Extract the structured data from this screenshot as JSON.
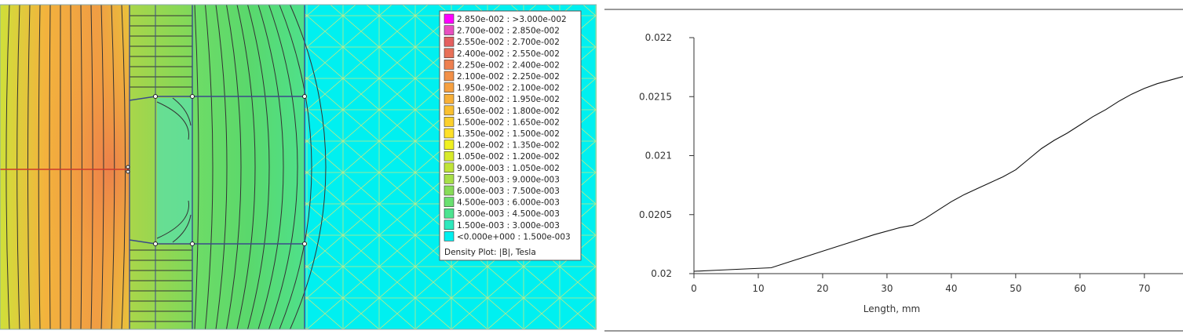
{
  "density_plot": {
    "caption": "Density Plot: |B|, Tesla",
    "legend": [
      {
        "label": "2.850e-002 : >3.000e-002",
        "color": "#ff00ff"
      },
      {
        "label": "2.700e-002 : 2.850e-002",
        "color": "#e84fc0"
      },
      {
        "label": "2.550e-002 : 2.700e-002",
        "color": "#e46060"
      },
      {
        "label": "2.400e-002 : 2.550e-002",
        "color": "#e87058"
      },
      {
        "label": "2.250e-002 : 2.400e-002",
        "color": "#ee8050"
      },
      {
        "label": "2.100e-002 : 2.250e-002",
        "color": "#f29048"
      },
      {
        "label": "1.950e-002 : 2.100e-002",
        "color": "#f6a040"
      },
      {
        "label": "1.800e-002 : 1.950e-002",
        "color": "#f8b038"
      },
      {
        "label": "1.650e-002 : 1.800e-002",
        "color": "#fac030"
      },
      {
        "label": "1.500e-002 : 1.650e-002",
        "color": "#fcd02c"
      },
      {
        "label": "1.350e-002 : 1.500e-002",
        "color": "#fee028"
      },
      {
        "label": "1.200e-002 : 1.350e-002",
        "color": "#f0f020"
      },
      {
        "label": "1.050e-002 : 1.200e-002",
        "color": "#d8ea2a"
      },
      {
        "label": "9.000e-003 : 1.050e-002",
        "color": "#c0e438"
      },
      {
        "label": "7.500e-003 : 9.000e-003",
        "color": "#a8e048"
      },
      {
        "label": "6.000e-003 : 7.500e-003",
        "color": "#88dc58"
      },
      {
        "label": "4.500e-003 : 6.000e-003",
        "color": "#6ae070"
      },
      {
        "label": "3.000e-003 : 4.500e-003",
        "color": "#4ce490"
      },
      {
        "label": "1.500e-003 : 3.000e-003",
        "color": "#2ee8bc"
      },
      {
        "label": "<0.000e+000 : 1.500e-003",
        "color": "#00f0f0"
      }
    ]
  },
  "chart_data": {
    "type": "line",
    "title": "",
    "xlabel": "Length, mm",
    "ylabel": "",
    "xlim": [
      0,
      76
    ],
    "ylim": [
      0.02,
      0.022
    ],
    "xticks": [
      "0",
      "10",
      "20",
      "30",
      "40",
      "50",
      "60",
      "70"
    ],
    "yticks": [
      "0.02",
      "0.0205",
      "0.021",
      "0.0215",
      "0.022"
    ],
    "grid": false,
    "series": [
      {
        "x": [
          0,
          4,
          8,
          12,
          16,
          20,
          24,
          28,
          32,
          34,
          36,
          38,
          40,
          42,
          44,
          46,
          48,
          50,
          52,
          54,
          56,
          58,
          60,
          62,
          64,
          66,
          68,
          70,
          72,
          74,
          76
        ],
        "y": [
          0.02002,
          0.02003,
          0.02004,
          0.02005,
          0.02012,
          0.02019,
          0.02026,
          0.02033,
          0.02039,
          0.02041,
          0.02047,
          0.02054,
          0.02061,
          0.02067,
          0.02072,
          0.02077,
          0.02082,
          0.02088,
          0.02097,
          0.02106,
          0.02113,
          0.02119,
          0.02126,
          0.02133,
          0.02139,
          0.02146,
          0.02152,
          0.02157,
          0.02161,
          0.02164,
          0.02167
        ]
      }
    ]
  }
}
